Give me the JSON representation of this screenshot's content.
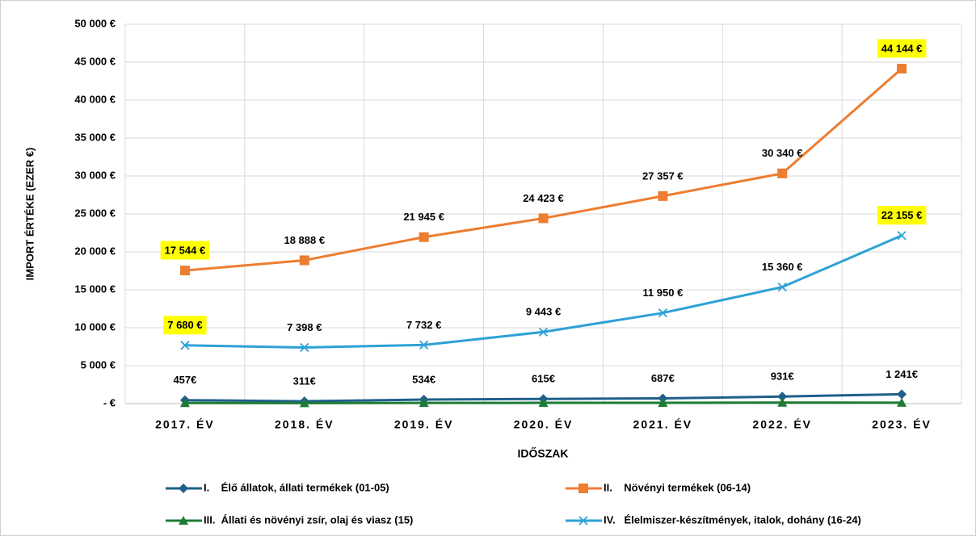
{
  "chart_data": {
    "type": "line",
    "y_label": "IMPORT ÉRTÉKE (EZER €)",
    "x_label": "IDŐSZAK",
    "categories": [
      "2017. ÉV",
      "2018. ÉV",
      "2019. ÉV",
      "2020. ÉV",
      "2021. ÉV",
      "2022. ÉV",
      "2023. ÉV"
    ],
    "ylim": [
      0,
      50000
    ],
    "yticks": [
      {
        "value": 0,
        "label": "- €"
      },
      {
        "value": 5000,
        "label": "5 000 €"
      },
      {
        "value": 10000,
        "label": "10 000 €"
      },
      {
        "value": 15000,
        "label": "15 000 €"
      },
      {
        "value": 20000,
        "label": "20 000 €"
      },
      {
        "value": 25000,
        "label": "25 000 €"
      },
      {
        "value": 30000,
        "label": "30 000 €"
      },
      {
        "value": 35000,
        "label": "35 000 €"
      },
      {
        "value": 40000,
        "label": "40 000 €"
      },
      {
        "value": 45000,
        "label": "45 000 €"
      },
      {
        "value": 50000,
        "label": "50 000 €"
      }
    ],
    "grid": true,
    "highlight_color": "#ffff00",
    "series": [
      {
        "name": "I.    Élő állatok, állati termékek (01-05)",
        "color": "#1f5f8b",
        "marker": "diamond",
        "values": [
          457,
          311,
          534,
          615,
          687,
          931,
          1241
        ],
        "value_labels": [
          "457€",
          "311€",
          "534€",
          "615€",
          "687€",
          "931€",
          "1 241€"
        ]
      },
      {
        "name": "II.    Növényi termékek (06-14)",
        "color": "#ed7d31",
        "marker": "square",
        "values": [
          17544,
          18888,
          21945,
          24423,
          27357,
          30340,
          44144
        ],
        "value_labels": [
          "17 544 €",
          "18 888 €",
          "21 945 €",
          "24 423 €",
          "27 357 €",
          "30 340 €",
          "44 144 €"
        ],
        "highlight": [
          0,
          6
        ]
      },
      {
        "name": "III.  Állati és növényi zsír, olaj és viasz (15)",
        "color": "#1e7b34",
        "marker": "triangle",
        "values": [
          80,
          70,
          90,
          100,
          110,
          130,
          120
        ]
      },
      {
        "name": "IV.   Élelmiszer-készítmények, italok, dohány (16-24)",
        "color": "#2ea1d6",
        "marker": "x",
        "values": [
          7680,
          7398,
          7732,
          9443,
          11950,
          15360,
          22155
        ],
        "value_labels": [
          "7 680 €",
          "7 398 €",
          "7 732 €",
          "9 443 €",
          "11 950 €",
          "15 360 €",
          "22 155 €"
        ],
        "highlight": [
          0,
          6
        ]
      }
    ]
  }
}
